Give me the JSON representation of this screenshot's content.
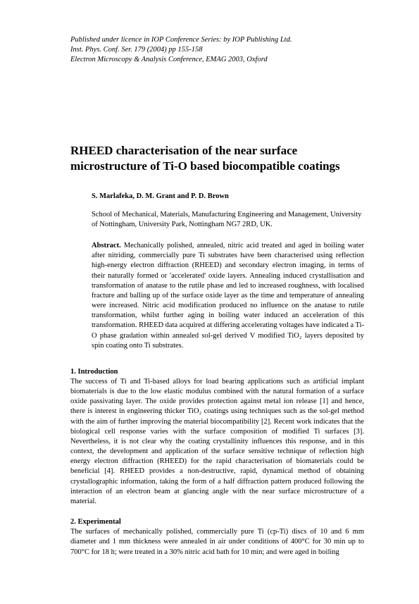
{
  "header": {
    "line1": "Published under licence in IOP Conference Series: by IOP Publishing Ltd.",
    "line2": "Inst. Phys. Conf. Ser. 179 (2004) pp 155-158",
    "line3": "Electron Microscopy & Analysis Conference, EMAG 2003, Oxford"
  },
  "title": "RHEED characterisation of the near surface microstructure of Ti-O based biocompatible coatings",
  "authors": "S. Marlafeka, D. M. Grant and P. D. Brown",
  "affiliation": "School of Mechanical, Materials, Manufacturing Engineering and Management, University of Nottingham, University Park, Nottingham NG7 2RD, UK.",
  "abstract": {
    "label": "Abstract.",
    "text": " Mechanically polished, annealed, nitric acid treated and aged in boiling water after nitriding, commercially pure Ti substrates have been characterised using reflection high-energy electron diffraction (RHEED) and secondary electron imaging, in terms of their naturally formed or 'accelerated' oxide layers. Annealing induced crystallisation and transformation of anatase to the rutile phase and led to increased roughness, with localised fracture and balling up of the surface oxide layer as the time and temperature of annealing were increased. Nitric acid modification produced no influence on the anatase to rutile transformation, whilst further aging in boiling water induced an acceleration of this transformation. RHEED data acquired at differing accelerating voltages have indicated a Ti-O phase gradation within annealed sol-gel derived V modified TiO₂ layers deposited by spin coating onto Ti substrates."
  },
  "section1": {
    "heading": "1.   Introduction",
    "text": "The success of Ti and Ti-based alloys for load bearing applications such as artificial implant biomaterials is due to the low elastic modulus combined with the natural formation of a surface oxide passivating layer. The oxide provides protection against metal ion release [1] and hence, there is interest in engineering thicker TiO₂ coatings using techniques such as the sol-gel method with the aim of further improving the material biocompatibility [2]. Recent work indicates that the biological cell response varies with the surface composition of modified Ti surfaces [3]. Nevertheless, it is not clear why the coating crystallinity influences this response, and in this context, the development and application of the surface sensitive technique of reflection high energy electron diffraction (RHEED) for the rapid characterisation of biomaterials could be beneficial [4]. RHEED provides a non-destructive, rapid, dynamical method of obtaining crystallographic information, taking the form of a half diffraction pattern produced following the interaction of an electron beam at glancing angle with the near surface microstructure of a material."
  },
  "section2": {
    "heading": "2.   Experimental",
    "text": "The surfaces of mechanically polished, commercially pure Ti (cp-Ti) discs of 10 and 6 mm diameter and 1 mm thickness were annealed in air under conditions of 400°C for 30 min up to 700°C for 18 h; were treated in a 30% nitric acid bath for 10 min; and were aged in boiling"
  }
}
